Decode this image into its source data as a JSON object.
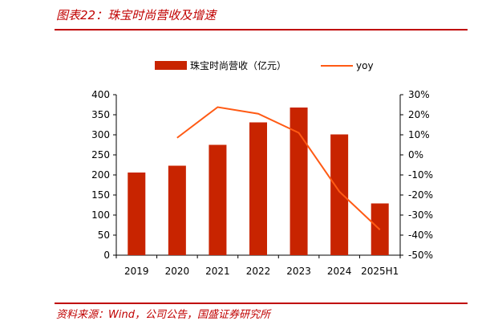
{
  "title": "图表22：珠宝时尚营收及增速",
  "source": "资料来源：Wind，公司公告，国盛证券研究所",
  "colors": {
    "bar": "#c82400",
    "line": "#ff5a14",
    "accent": "#c00000"
  },
  "chart_data": {
    "type": "bar+line",
    "categories": [
      "2019",
      "2020",
      "2021",
      "2022",
      "2023",
      "2024",
      "2025H1"
    ],
    "series": [
      {
        "name": "珠宝时尚营收（亿元）",
        "type": "bar",
        "axis": "left",
        "values": [
          206,
          223,
          275,
          331,
          368,
          301,
          129
        ]
      },
      {
        "name": "yoy",
        "type": "line",
        "axis": "right",
        "values": [
          null,
          8.5,
          23.8,
          20.5,
          11.0,
          -18.3,
          -37.3
        ]
      }
    ],
    "y_left": {
      "ylim": [
        0,
        400
      ],
      "ticks": [
        "0",
        "50",
        "100",
        "150",
        "200",
        "250",
        "300",
        "350",
        "400"
      ]
    },
    "y_right": {
      "ylim": [
        -50,
        30
      ],
      "ticks": [
        "-50%",
        "-40%",
        "-30%",
        "-20%",
        "-10%",
        "0%",
        "10%",
        "20%",
        "30%"
      ]
    },
    "legend": "top",
    "grid": false
  }
}
